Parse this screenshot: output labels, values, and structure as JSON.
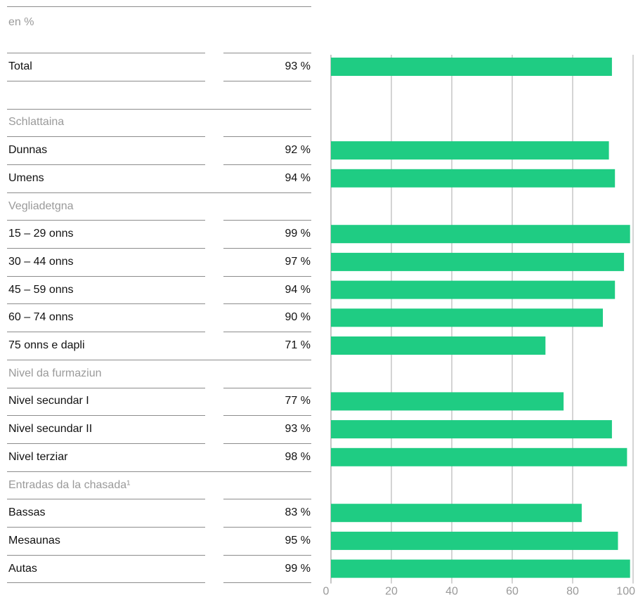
{
  "unit_label": "en %",
  "colors": {
    "bar": "#1fcc83",
    "grid": "#a8a8a8",
    "muted": "#9a9a9a"
  },
  "chart_data": {
    "type": "bar",
    "orientation": "horizontal",
    "title": "",
    "xlabel": "",
    "ylabel": "",
    "xlim": [
      0,
      100
    ],
    "ticks": [
      0,
      20,
      40,
      60,
      80,
      100
    ],
    "grid": true,
    "rows": [
      {
        "kind": "item",
        "label": "Total",
        "value": 93,
        "value_label": "93 %"
      },
      {
        "kind": "gap"
      },
      {
        "kind": "section",
        "label": "Schlattaina"
      },
      {
        "kind": "item",
        "label": "Dunnas",
        "value": 92,
        "value_label": "92 %"
      },
      {
        "kind": "item",
        "label": "Umens",
        "value": 94,
        "value_label": "94 %"
      },
      {
        "kind": "section",
        "label": "Vegliadetgna"
      },
      {
        "kind": "item",
        "label": "15 – 29 onns",
        "value": 99,
        "value_label": "99 %"
      },
      {
        "kind": "item",
        "label": "30 – 44 onns",
        "value": 97,
        "value_label": "97 %"
      },
      {
        "kind": "item",
        "label": "45 – 59 onns",
        "value": 94,
        "value_label": "94 %"
      },
      {
        "kind": "item",
        "label": "60 – 74 onns",
        "value": 90,
        "value_label": "90 %"
      },
      {
        "kind": "item",
        "label": "75 onns e dapli",
        "value": 71,
        "value_label": "71 %"
      },
      {
        "kind": "section",
        "label": "Nivel da furmaziun"
      },
      {
        "kind": "item",
        "label": "Nivel secundar I",
        "value": 77,
        "value_label": "77 %"
      },
      {
        "kind": "item",
        "label": "Nivel secundar II",
        "value": 93,
        "value_label": "93 %"
      },
      {
        "kind": "item",
        "label": "Nivel terziar",
        "value": 98,
        "value_label": "98 %"
      },
      {
        "kind": "section",
        "label": "Entradas da la chasada¹"
      },
      {
        "kind": "item",
        "label": "Bassas",
        "value": 83,
        "value_label": "83 %"
      },
      {
        "kind": "item",
        "label": "Mesaunas",
        "value": 95,
        "value_label": "95 %"
      },
      {
        "kind": "item",
        "label": "Autas",
        "value": 99,
        "value_label": "99 %"
      }
    ]
  }
}
